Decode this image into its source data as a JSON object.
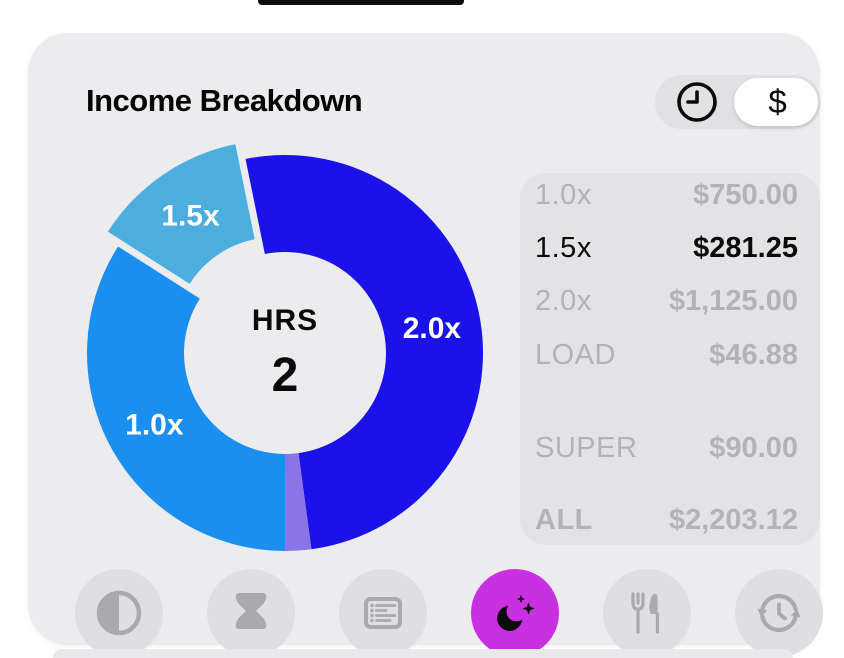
{
  "header": {
    "title": "Income Breakdown",
    "toggle": {
      "selected": "dollar",
      "dollar_label": "$",
      "left_icon": "clock-icon"
    }
  },
  "chart_data": {
    "type": "pie",
    "variant": "donut-exploded",
    "center": {
      "label": "HRS",
      "value": "2"
    },
    "rotation_deg": -11.5,
    "legend_position": "none",
    "segments": [
      {
        "label": "2.0x",
        "value": 1125.0,
        "color": "#1a12e8",
        "show_label": true,
        "exploded": false
      },
      {
        "label": "LOAD",
        "value": 46.88,
        "color": "#8b74e8",
        "show_label": false,
        "exploded": false
      },
      {
        "label": "1.0x",
        "value": 750.0,
        "color": "#1b8ff0",
        "show_label": true,
        "exploded": false
      },
      {
        "label": "1.5x",
        "value": 281.25,
        "color": "#4caede",
        "show_label": true,
        "exploded": true
      }
    ]
  },
  "breakdown": {
    "rows": [
      {
        "label": "1.0x",
        "value": "$750.00",
        "style": "muted"
      },
      {
        "label": "1.5x",
        "value": "$281.25",
        "style": "active"
      },
      {
        "label": "2.0x",
        "value": "$1,125.00",
        "style": "muted"
      },
      {
        "label": "LOAD",
        "value": "$46.88",
        "style": "muted"
      },
      {
        "label": "SUPER",
        "value": "$90.00",
        "style": "muted"
      },
      {
        "label": "ALL",
        "value": "$2,203.12",
        "style": "total"
      }
    ]
  },
  "toolbar": {
    "icons": [
      "contrast-icon",
      "hourglass-icon",
      "list-icon",
      "moon-sparkles-icon",
      "fork-knife-icon",
      "history-icon"
    ],
    "active_icon": "moon-sparkles-icon"
  },
  "colors": {
    "accent": "#c930e2",
    "card_bg": "#ececee",
    "panel_bg": "#e3e3e6",
    "muted": "#b2b2b7",
    "icon_gray": "#a9a9ae",
    "seg_2x": "#1a12e8",
    "seg_load": "#8b74e8",
    "seg_1x": "#1b8ff0",
    "seg_15x": "#4caede"
  }
}
